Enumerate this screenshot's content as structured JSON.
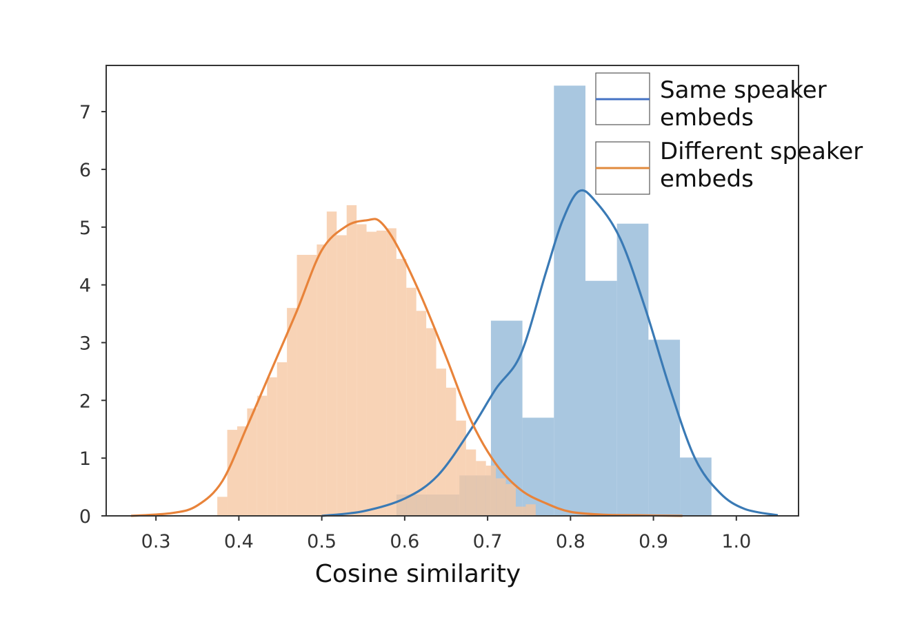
{
  "chart_data": {
    "type": "histogram",
    "title": "",
    "xlabel": "Cosine similarity",
    "ylabel": "",
    "xlim": [
      0.24,
      1.075
    ],
    "ylim": [
      0,
      7.8
    ],
    "x_ticks": [
      "0.3",
      "0.4",
      "0.5",
      "0.6",
      "0.7",
      "0.8",
      "0.9",
      "1.0"
    ],
    "y_ticks": [
      "0",
      "1",
      "2",
      "3",
      "4",
      "5",
      "6",
      "7"
    ],
    "grid": false,
    "legend_position": "top-right",
    "series": [
      {
        "name": "Same speaker embeds",
        "color": "#3a7ab5",
        "fill_color": "#a9c7e0",
        "bins": [
          {
            "x0": 0.59,
            "x1": 0.628,
            "y": 0.37
          },
          {
            "x0": 0.628,
            "x1": 0.666,
            "y": 0.37
          },
          {
            "x0": 0.666,
            "x1": 0.704,
            "y": 0.7
          },
          {
            "x0": 0.704,
            "x1": 0.742,
            "y": 3.38
          },
          {
            "x0": 0.742,
            "x1": 0.78,
            "y": 1.7
          },
          {
            "x0": 0.78,
            "x1": 0.818,
            "y": 7.45
          },
          {
            "x0": 0.818,
            "x1": 0.856,
            "y": 4.07
          },
          {
            "x0": 0.856,
            "x1": 0.894,
            "y": 5.06
          },
          {
            "x0": 0.894,
            "x1": 0.932,
            "y": 3.05
          },
          {
            "x0": 0.932,
            "x1": 0.97,
            "y": 1.01
          }
        ],
        "kde_x": [
          0.5,
          0.55,
          0.6,
          0.64,
          0.68,
          0.71,
          0.74,
          0.77,
          0.79,
          0.81,
          0.83,
          0.86,
          0.89,
          0.92,
          0.95,
          0.98,
          1.01,
          1.05
        ],
        "kde_y": [
          0.0,
          0.08,
          0.3,
          0.7,
          1.5,
          2.2,
          2.8,
          4.2,
          5.1,
          5.62,
          5.45,
          4.8,
          3.6,
          2.2,
          1.0,
          0.4,
          0.12,
          0.01
        ]
      },
      {
        "name": "Different speaker embeds",
        "color": "#e8833a",
        "fill_color": "#f6c7a2",
        "bins": [
          {
            "x0": 0.374,
            "x1": 0.386,
            "y": 0.33
          },
          {
            "x0": 0.386,
            "x1": 0.398,
            "y": 1.49
          },
          {
            "x0": 0.398,
            "x1": 0.41,
            "y": 1.55
          },
          {
            "x0": 0.41,
            "x1": 0.422,
            "y": 1.86
          },
          {
            "x0": 0.422,
            "x1": 0.434,
            "y": 2.08
          },
          {
            "x0": 0.434,
            "x1": 0.446,
            "y": 2.4
          },
          {
            "x0": 0.446,
            "x1": 0.458,
            "y": 2.66
          },
          {
            "x0": 0.458,
            "x1": 0.47,
            "y": 3.6
          },
          {
            "x0": 0.47,
            "x1": 0.482,
            "y": 4.52
          },
          {
            "x0": 0.482,
            "x1": 0.494,
            "y": 4.52
          },
          {
            "x0": 0.494,
            "x1": 0.506,
            "y": 4.7
          },
          {
            "x0": 0.506,
            "x1": 0.518,
            "y": 5.27
          },
          {
            "x0": 0.518,
            "x1": 0.53,
            "y": 4.86
          },
          {
            "x0": 0.53,
            "x1": 0.542,
            "y": 5.38
          },
          {
            "x0": 0.542,
            "x1": 0.554,
            "y": 5.05
          },
          {
            "x0": 0.554,
            "x1": 0.566,
            "y": 4.92
          },
          {
            "x0": 0.566,
            "x1": 0.578,
            "y": 4.94
          },
          {
            "x0": 0.578,
            "x1": 0.59,
            "y": 4.98
          },
          {
            "x0": 0.59,
            "x1": 0.602,
            "y": 4.45
          },
          {
            "x0": 0.602,
            "x1": 0.614,
            "y": 3.95
          },
          {
            "x0": 0.614,
            "x1": 0.626,
            "y": 3.55
          },
          {
            "x0": 0.626,
            "x1": 0.638,
            "y": 3.25
          },
          {
            "x0": 0.638,
            "x1": 0.65,
            "y": 2.55
          },
          {
            "x0": 0.65,
            "x1": 0.662,
            "y": 2.22
          },
          {
            "x0": 0.662,
            "x1": 0.674,
            "y": 1.65
          },
          {
            "x0": 0.674,
            "x1": 0.686,
            "y": 1.15
          },
          {
            "x0": 0.686,
            "x1": 0.698,
            "y": 0.95
          },
          {
            "x0": 0.698,
            "x1": 0.71,
            "y": 0.87
          },
          {
            "x0": 0.71,
            "x1": 0.722,
            "y": 0.65
          },
          {
            "x0": 0.722,
            "x1": 0.734,
            "y": 0.55
          },
          {
            "x0": 0.734,
            "x1": 0.746,
            "y": 0.16
          },
          {
            "x0": 0.746,
            "x1": 0.758,
            "y": 0.2
          }
        ],
        "kde_x": [
          0.27,
          0.32,
          0.35,
          0.38,
          0.41,
          0.44,
          0.47,
          0.5,
          0.53,
          0.555,
          0.57,
          0.59,
          0.62,
          0.65,
          0.68,
          0.71,
          0.74,
          0.77,
          0.8,
          0.84,
          0.88,
          0.935
        ],
        "kde_y": [
          0.0,
          0.05,
          0.18,
          0.6,
          1.55,
          2.55,
          3.55,
          4.6,
          5.02,
          5.12,
          5.1,
          4.7,
          3.8,
          2.75,
          1.65,
          0.9,
          0.45,
          0.22,
          0.07,
          0.02,
          0.01,
          0.0
        ]
      }
    ]
  }
}
